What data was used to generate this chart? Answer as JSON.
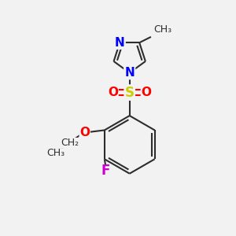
{
  "bg_color": "#f2f2f2",
  "bond_color": "#2d2d2d",
  "N_color": "#0000ff",
  "O_color": "#ff0000",
  "S_color": "#cccc00",
  "F_color": "#cc00cc",
  "lw": 1.5,
  "figsize": [
    3.0,
    3.0
  ],
  "dpi": 100,
  "xlim": [
    0,
    10
  ],
  "ylim": [
    0,
    10
  ]
}
